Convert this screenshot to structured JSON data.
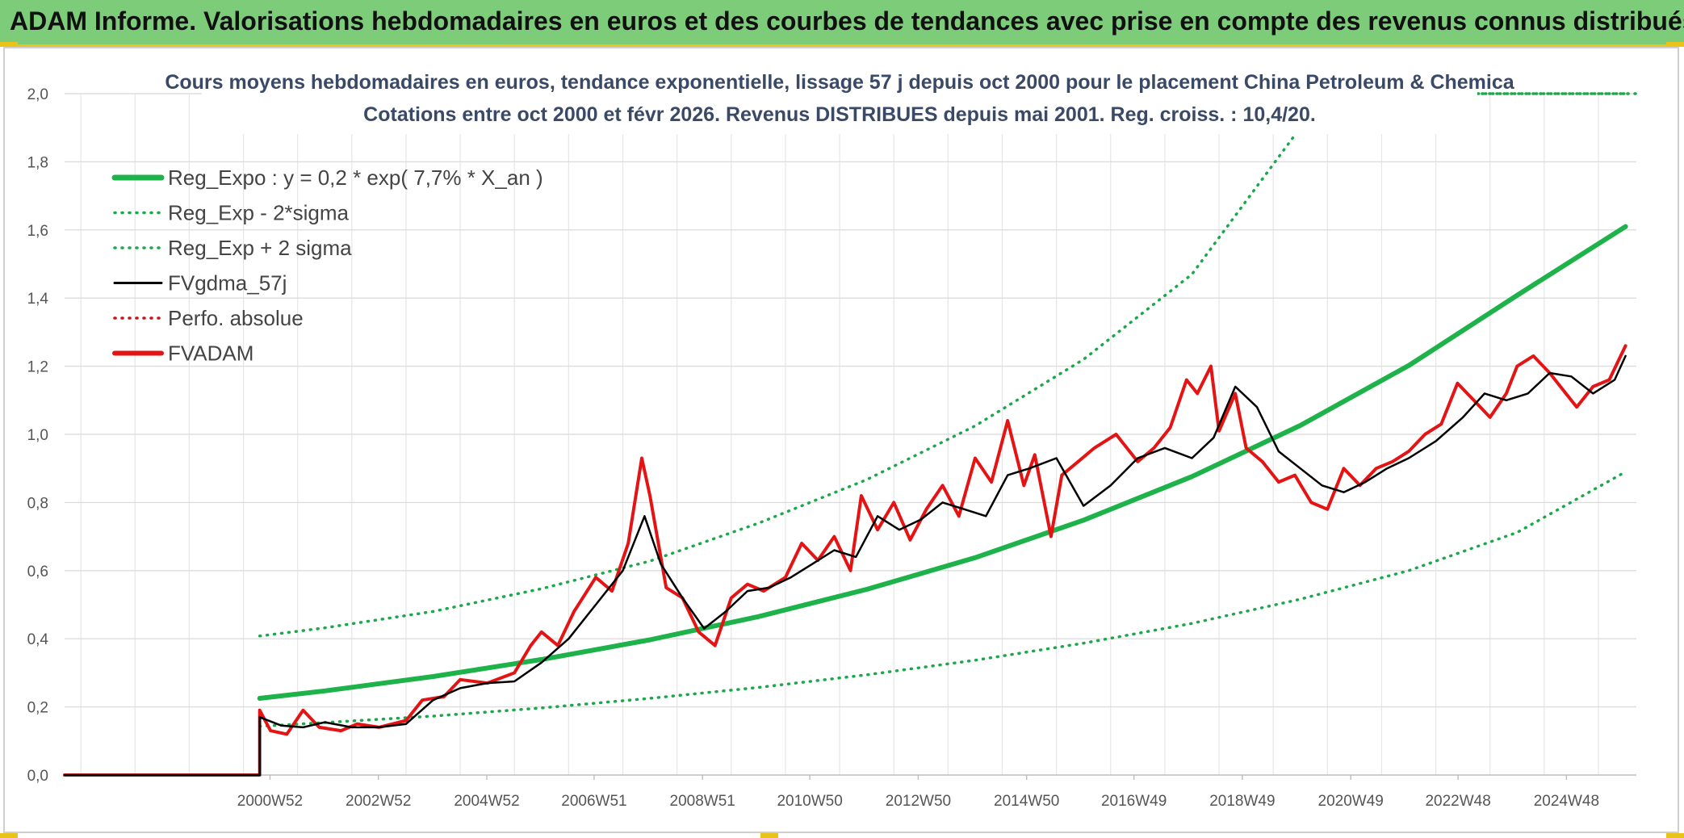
{
  "banner": {
    "title": "ADAM Informe. Valorisations hebdomadaires en euros et des courbes de tendances avec prise en compte des revenus connus distribués"
  },
  "colors": {
    "banner_bg": "#7dcc7a",
    "accent_yellow": "#e9c21a",
    "reg_green": "#1db34a",
    "sigma_green": "#1aa84a",
    "fvgdma_black": "#000000",
    "fvadam_red": "#e51414",
    "perfo_red": "#d01010",
    "title_text": "#3a4a66"
  },
  "chart_data": {
    "type": "line",
    "title": "Cours moyens hebdomadaires en euros, tendance exponentielle, lissage 57 j depuis oct 2000 pour le placement China Petroleum & Chemica",
    "subtitle": "Cotations entre oct 2000 et févr 2026. Revenus DISTRIBUES depuis mai 2001. Reg. croiss. : 10,4/20.",
    "xlabel": "",
    "ylabel": "",
    "x_range": [
      1997.2,
      2026.2
    ],
    "ylim": [
      0,
      2.0
    ],
    "y_ticks": [
      "0,0",
      "0,2",
      "0,4",
      "0,6",
      "0,8",
      "1,0",
      "1,2",
      "1,4",
      "1,6",
      "1,8",
      "2,0"
    ],
    "x_ticks": [
      {
        "label": "2000W52",
        "x": 2000.99
      },
      {
        "label": "2002W52",
        "x": 2002.99
      },
      {
        "label": "2004W52",
        "x": 2004.99
      },
      {
        "label": "2006W51",
        "x": 2006.97
      },
      {
        "label": "2008W51",
        "x": 2008.97
      },
      {
        "label": "2010W50",
        "x": 2010.95
      },
      {
        "label": "2012W50",
        "x": 2012.95
      },
      {
        "label": "2014W50",
        "x": 2014.95
      },
      {
        "label": "2016W49",
        "x": 2016.93
      },
      {
        "label": "2018W49",
        "x": 2018.93
      },
      {
        "label": "2020W49",
        "x": 2020.93
      },
      {
        "label": "2022W48",
        "x": 2022.91
      },
      {
        "label": "2024W48",
        "x": 2024.91
      }
    ],
    "grid": true,
    "legend_position": "top-left",
    "series": [
      {
        "name": "Reg_Expo : y = 0,2 * exp( 7,7% *  X_an )",
        "style": "solid-thick",
        "color": "#1db34a",
        "points": [
          [
            2000.8,
            0.225
          ],
          [
            2002,
            0.247
          ],
          [
            2004,
            0.289
          ],
          [
            2006,
            0.339
          ],
          [
            2008,
            0.397
          ],
          [
            2010,
            0.465
          ],
          [
            2012,
            0.545
          ],
          [
            2014,
            0.638
          ],
          [
            2016,
            0.748
          ],
          [
            2018,
            0.876
          ],
          [
            2020,
            1.026
          ],
          [
            2022,
            1.202
          ],
          [
            2024,
            1.408
          ],
          [
            2026,
            1.61
          ]
        ]
      },
      {
        "name": "Reg_Exp - 2*sigma",
        "style": "dotted",
        "color": "#1aa84a",
        "points": [
          [
            2000.8,
            0.143
          ],
          [
            2002,
            0.154
          ],
          [
            2004,
            0.173
          ],
          [
            2006,
            0.197
          ],
          [
            2008,
            0.225
          ],
          [
            2010,
            0.257
          ],
          [
            2012,
            0.294
          ],
          [
            2014,
            0.337
          ],
          [
            2016,
            0.387
          ],
          [
            2018,
            0.445
          ],
          [
            2020,
            0.516
          ],
          [
            2022,
            0.6
          ],
          [
            2024,
            0.712
          ],
          [
            2026,
            0.89
          ]
        ]
      },
      {
        "name": "Reg_Exp + 2 sigma",
        "style": "dotted",
        "color": "#1aa84a",
        "points": [
          [
            2000.8,
            0.408
          ],
          [
            2002,
            0.432
          ],
          [
            2004,
            0.48
          ],
          [
            2006,
            0.547
          ],
          [
            2008,
            0.628
          ],
          [
            2010,
            0.739
          ],
          [
            2012,
            0.867
          ],
          [
            2014,
            1.025
          ],
          [
            2016,
            1.22
          ],
          [
            2018,
            1.47
          ],
          [
            2020,
            1.9
          ],
          [
            2022,
            2.0
          ],
          [
            2026,
            2.0
          ]
        ]
      },
      {
        "name": "FVgdma_57j",
        "style": "solid",
        "color": "#000000",
        "points": [
          [
            1997.2,
            0.0
          ],
          [
            2000.8,
            0.0
          ],
          [
            2000.8,
            0.17
          ],
          [
            2001.2,
            0.145
          ],
          [
            2001.6,
            0.14
          ],
          [
            2002.0,
            0.155
          ],
          [
            2002.5,
            0.14
          ],
          [
            2003.0,
            0.14
          ],
          [
            2003.5,
            0.15
          ],
          [
            2004.0,
            0.22
          ],
          [
            2004.5,
            0.255
          ],
          [
            2005.0,
            0.27
          ],
          [
            2005.5,
            0.275
          ],
          [
            2006.0,
            0.33
          ],
          [
            2006.5,
            0.4
          ],
          [
            2007.0,
            0.5
          ],
          [
            2007.5,
            0.6
          ],
          [
            2007.9,
            0.76
          ],
          [
            2008.2,
            0.62
          ],
          [
            2008.6,
            0.52
          ],
          [
            2009.0,
            0.43
          ],
          [
            2009.4,
            0.48
          ],
          [
            2009.8,
            0.54
          ],
          [
            2010.2,
            0.55
          ],
          [
            2010.6,
            0.58
          ],
          [
            2011.0,
            0.62
          ],
          [
            2011.4,
            0.66
          ],
          [
            2011.8,
            0.64
          ],
          [
            2012.2,
            0.76
          ],
          [
            2012.6,
            0.72
          ],
          [
            2013.0,
            0.75
          ],
          [
            2013.4,
            0.8
          ],
          [
            2013.8,
            0.78
          ],
          [
            2014.2,
            0.76
          ],
          [
            2014.6,
            0.88
          ],
          [
            2015.0,
            0.9
          ],
          [
            2015.5,
            0.93
          ],
          [
            2016.0,
            0.79
          ],
          [
            2016.5,
            0.85
          ],
          [
            2017.0,
            0.93
          ],
          [
            2017.5,
            0.96
          ],
          [
            2018.0,
            0.93
          ],
          [
            2018.4,
            0.99
          ],
          [
            2018.8,
            1.14
          ],
          [
            2019.2,
            1.08
          ],
          [
            2019.6,
            0.95
          ],
          [
            2020.0,
            0.9
          ],
          [
            2020.4,
            0.85
          ],
          [
            2020.8,
            0.83
          ],
          [
            2021.2,
            0.86
          ],
          [
            2021.6,
            0.9
          ],
          [
            2022.0,
            0.93
          ],
          [
            2022.5,
            0.98
          ],
          [
            2023.0,
            1.05
          ],
          [
            2023.4,
            1.12
          ],
          [
            2023.8,
            1.1
          ],
          [
            2024.2,
            1.12
          ],
          [
            2024.6,
            1.18
          ],
          [
            2025.0,
            1.17
          ],
          [
            2025.4,
            1.12
          ],
          [
            2025.8,
            1.16
          ],
          [
            2026.0,
            1.23
          ]
        ]
      },
      {
        "name": "Perfo. absolue",
        "style": "dotted",
        "color": "#d01010",
        "points": []
      },
      {
        "name": "FVADAM",
        "style": "solid-thick",
        "color": "#e51414",
        "points": [
          [
            1997.2,
            0.0
          ],
          [
            2000.8,
            0.0
          ],
          [
            2000.8,
            0.19
          ],
          [
            2001.0,
            0.13
          ],
          [
            2001.3,
            0.12
          ],
          [
            2001.6,
            0.19
          ],
          [
            2001.9,
            0.14
          ],
          [
            2002.3,
            0.13
          ],
          [
            2002.6,
            0.15
          ],
          [
            2003.0,
            0.14
          ],
          [
            2003.5,
            0.16
          ],
          [
            2003.8,
            0.22
          ],
          [
            2004.2,
            0.23
          ],
          [
            2004.5,
            0.28
          ],
          [
            2005.0,
            0.27
          ],
          [
            2005.5,
            0.3
          ],
          [
            2005.8,
            0.38
          ],
          [
            2006.0,
            0.42
          ],
          [
            2006.3,
            0.38
          ],
          [
            2006.6,
            0.48
          ],
          [
            2007.0,
            0.58
          ],
          [
            2007.3,
            0.54
          ],
          [
            2007.6,
            0.68
          ],
          [
            2007.85,
            0.93
          ],
          [
            2008.0,
            0.82
          ],
          [
            2008.3,
            0.55
          ],
          [
            2008.6,
            0.52
          ],
          [
            2008.9,
            0.42
          ],
          [
            2009.2,
            0.38
          ],
          [
            2009.5,
            0.52
          ],
          [
            2009.8,
            0.56
          ],
          [
            2010.1,
            0.54
          ],
          [
            2010.5,
            0.58
          ],
          [
            2010.8,
            0.68
          ],
          [
            2011.1,
            0.63
          ],
          [
            2011.4,
            0.7
          ],
          [
            2011.7,
            0.6
          ],
          [
            2011.9,
            0.82
          ],
          [
            2012.2,
            0.72
          ],
          [
            2012.5,
            0.8
          ],
          [
            2012.8,
            0.69
          ],
          [
            2013.1,
            0.78
          ],
          [
            2013.4,
            0.85
          ],
          [
            2013.7,
            0.76
          ],
          [
            2014.0,
            0.93
          ],
          [
            2014.3,
            0.86
          ],
          [
            2014.6,
            1.04
          ],
          [
            2014.9,
            0.85
          ],
          [
            2015.1,
            0.94
          ],
          [
            2015.4,
            0.7
          ],
          [
            2015.6,
            0.88
          ],
          [
            2015.9,
            0.92
          ],
          [
            2016.2,
            0.96
          ],
          [
            2016.6,
            1.0
          ],
          [
            2017.0,
            0.92
          ],
          [
            2017.3,
            0.96
          ],
          [
            2017.6,
            1.02
          ],
          [
            2017.9,
            1.16
          ],
          [
            2018.1,
            1.12
          ],
          [
            2018.35,
            1.2
          ],
          [
            2018.5,
            1.01
          ],
          [
            2018.8,
            1.12
          ],
          [
            2019.0,
            0.96
          ],
          [
            2019.3,
            0.92
          ],
          [
            2019.6,
            0.86
          ],
          [
            2019.9,
            0.88
          ],
          [
            2020.2,
            0.8
          ],
          [
            2020.5,
            0.78
          ],
          [
            2020.8,
            0.9
          ],
          [
            2021.1,
            0.85
          ],
          [
            2021.4,
            0.9
          ],
          [
            2021.7,
            0.92
          ],
          [
            2022.0,
            0.95
          ],
          [
            2022.3,
            1.0
          ],
          [
            2022.6,
            1.03
          ],
          [
            2022.9,
            1.15
          ],
          [
            2023.2,
            1.1
          ],
          [
            2023.5,
            1.05
          ],
          [
            2023.8,
            1.12
          ],
          [
            2024.0,
            1.2
          ],
          [
            2024.3,
            1.23
          ],
          [
            2024.6,
            1.18
          ],
          [
            2024.9,
            1.12
          ],
          [
            2025.1,
            1.08
          ],
          [
            2025.4,
            1.14
          ],
          [
            2025.7,
            1.16
          ],
          [
            2026.0,
            1.26
          ]
        ]
      }
    ]
  }
}
